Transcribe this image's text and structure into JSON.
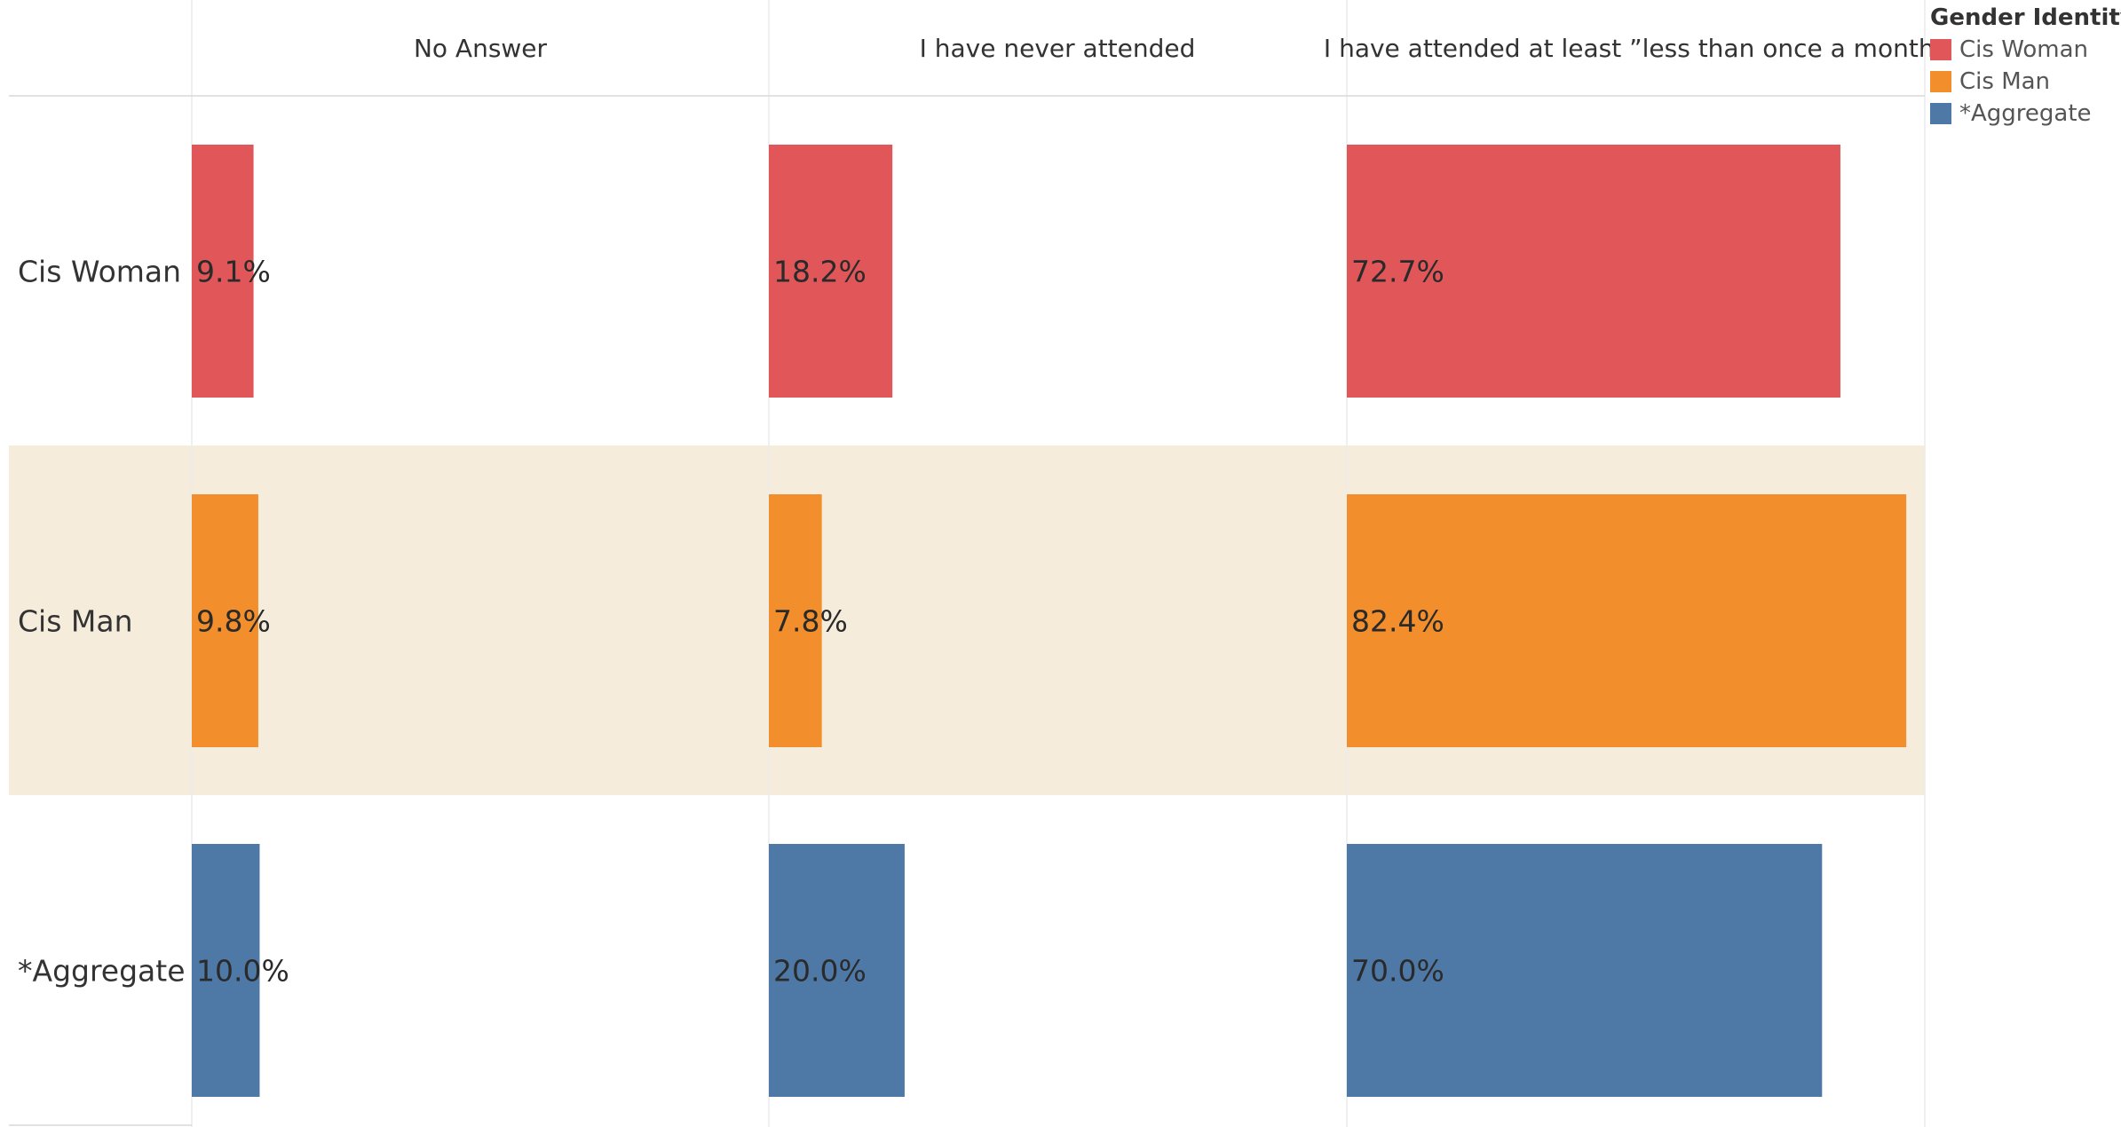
{
  "chart_data": {
    "type": "bar",
    "orientation": "horizontal",
    "columns": [
      "No Answer",
      "I have never attended",
      "I have attended at least ”less than once a month”"
    ],
    "rows": [
      "Cis Woman",
      "Cis Man",
      "*Aggregate"
    ],
    "values": [
      [
        9.1,
        18.2,
        72.7
      ],
      [
        9.8,
        7.8,
        82.4
      ],
      [
        10.0,
        20.0,
        70.0
      ]
    ],
    "value_labels": [
      [
        "9.1%",
        "18.2%",
        "72.7%"
      ],
      [
        "9.8%",
        "7.8%",
        "82.4%"
      ],
      [
        "10.0%",
        "20.0%",
        "70.0%"
      ]
    ],
    "value_unit": "%",
    "xlim": [
      0,
      85
    ],
    "highlighted_row": "Cis Man",
    "grid": false,
    "legend": {
      "title": "Gender Identity",
      "placement": "top-right",
      "items": [
        {
          "label": "Cis Woman",
          "color": "#e15759"
        },
        {
          "label": "Cis Man",
          "color": "#f28e2b"
        },
        {
          "label": "*Aggregate",
          "color": "#4e79a7"
        }
      ]
    }
  }
}
